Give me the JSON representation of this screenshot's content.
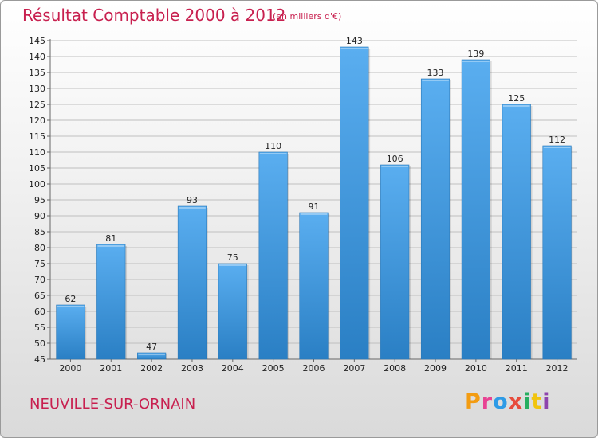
{
  "header": {
    "title": "Résultat Comptable 2000 à 2012",
    "subtitle": "(en milliers d'€)"
  },
  "footer": {
    "city": "NEUVILLE-SUR-ORNAIN",
    "logo_text": "Proxiti",
    "logo_colors": [
      "#f39c12",
      "#e84393",
      "#2e9be6",
      "#e74c3c",
      "#27ae60",
      "#f1c40f",
      "#8e44ad"
    ]
  },
  "colors": {
    "bar_top": "#5aaef0",
    "bar_bottom": "#2a7fc4",
    "grid": "#bfbfbf",
    "accent": "#c8204f"
  },
  "chart_data": {
    "type": "bar",
    "title": "Résultat Comptable 2000 à 2012",
    "xlabel": "",
    "ylabel": "",
    "categories": [
      "2000",
      "2001",
      "2002",
      "2003",
      "2004",
      "2005",
      "2006",
      "2007",
      "2008",
      "2009",
      "2010",
      "2011",
      "2012"
    ],
    "values": [
      62,
      81,
      47,
      93,
      75,
      110,
      91,
      143,
      106,
      133,
      139,
      125,
      112
    ],
    "ylim": [
      45,
      145
    ],
    "ytick_step": 5,
    "grid": true,
    "data_labels": true
  }
}
